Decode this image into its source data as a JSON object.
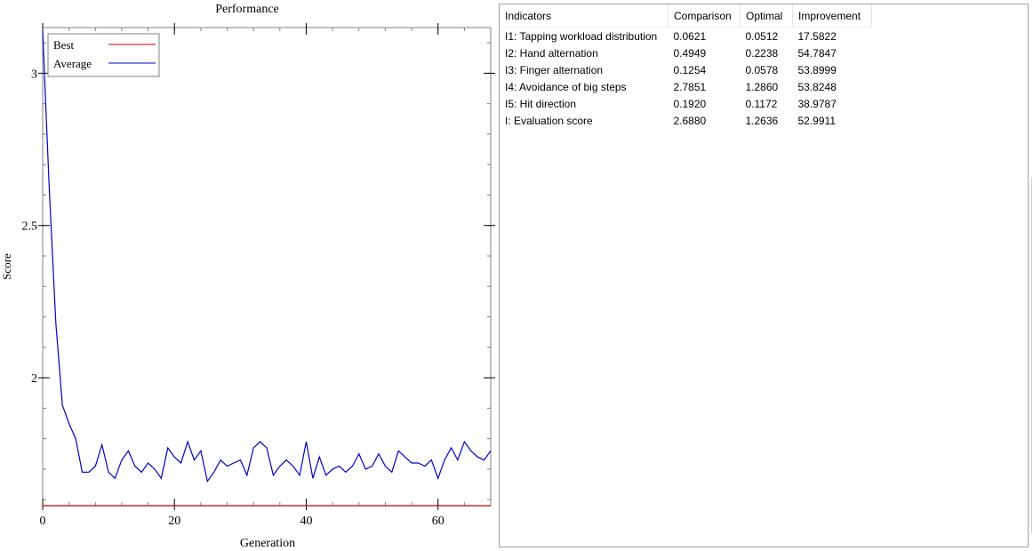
{
  "chart_data": {
    "type": "line",
    "title": "Performance",
    "xlabel": "Generation",
    "ylabel": "Score",
    "xlim": [
      0,
      68
    ],
    "ylim": [
      1.58,
      3.15
    ],
    "x_ticks": [
      0,
      20,
      40,
      60
    ],
    "x_tick_labels": [
      "0",
      "20",
      "40",
      "60"
    ],
    "y_ticks": [
      2,
      2.5,
      3
    ],
    "y_tick_labels": [
      "2",
      "2.5",
      "3"
    ],
    "legend": {
      "position": "top-left"
    },
    "series": [
      {
        "name": "Best",
        "color": "#cc0000",
        "values": [
          1.58,
          1.58,
          1.58,
          1.58,
          1.58,
          1.58,
          1.58,
          1.58,
          1.58,
          1.58,
          1.58,
          1.58,
          1.58,
          1.58,
          1.58,
          1.58,
          1.58,
          1.58,
          1.58,
          1.58,
          1.58,
          1.58,
          1.58,
          1.58,
          1.58,
          1.58,
          1.58,
          1.58,
          1.58,
          1.58,
          1.58,
          1.58,
          1.58,
          1.58,
          1.58,
          1.58,
          1.58,
          1.58,
          1.58,
          1.58,
          1.58,
          1.58,
          1.58,
          1.58,
          1.58,
          1.58,
          1.58,
          1.58,
          1.58,
          1.58,
          1.58,
          1.58,
          1.58,
          1.58,
          1.58,
          1.58,
          1.58,
          1.58,
          1.58,
          1.58,
          1.58,
          1.58,
          1.58,
          1.58,
          1.58,
          1.58,
          1.58,
          1.58,
          1.58
        ]
      },
      {
        "name": "Average",
        "color": "#0000cc",
        "values": [
          3.14,
          2.62,
          2.18,
          1.91,
          1.85,
          1.8,
          1.69,
          1.69,
          1.71,
          1.78,
          1.69,
          1.67,
          1.73,
          1.76,
          1.71,
          1.69,
          1.72,
          1.7,
          1.67,
          1.77,
          1.74,
          1.72,
          1.79,
          1.73,
          1.76,
          1.66,
          1.69,
          1.73,
          1.71,
          1.72,
          1.73,
          1.68,
          1.77,
          1.79,
          1.77,
          1.68,
          1.71,
          1.73,
          1.71,
          1.68,
          1.79,
          1.67,
          1.74,
          1.68,
          1.7,
          1.71,
          1.69,
          1.71,
          1.75,
          1.7,
          1.71,
          1.75,
          1.71,
          1.69,
          1.76,
          1.74,
          1.72,
          1.72,
          1.71,
          1.73,
          1.67,
          1.73,
          1.77,
          1.73,
          1.79,
          1.76,
          1.74,
          1.73,
          1.76
        ]
      }
    ]
  },
  "table": {
    "headers": [
      "Indicators",
      "Comparison",
      "Optimal",
      "Improvement"
    ],
    "rows": [
      [
        "I1: Tapping workload distribution",
        "0.0621",
        "0.0512",
        "17.5822"
      ],
      [
        "I2: Hand alternation",
        "0.4949",
        "0.2238",
        "54.7847"
      ],
      [
        "I3: Finger alternation",
        "0.1254",
        "0.0578",
        "53.8999"
      ],
      [
        "I4: Avoidance of big steps",
        "2.7851",
        "1.2860",
        "53.8248"
      ],
      [
        "I5: Hit direction",
        "0.1920",
        "0.1172",
        "38.9787"
      ],
      [
        "I: Evaluation score",
        "2.6880",
        "1.2636",
        "52.9911"
      ]
    ]
  }
}
